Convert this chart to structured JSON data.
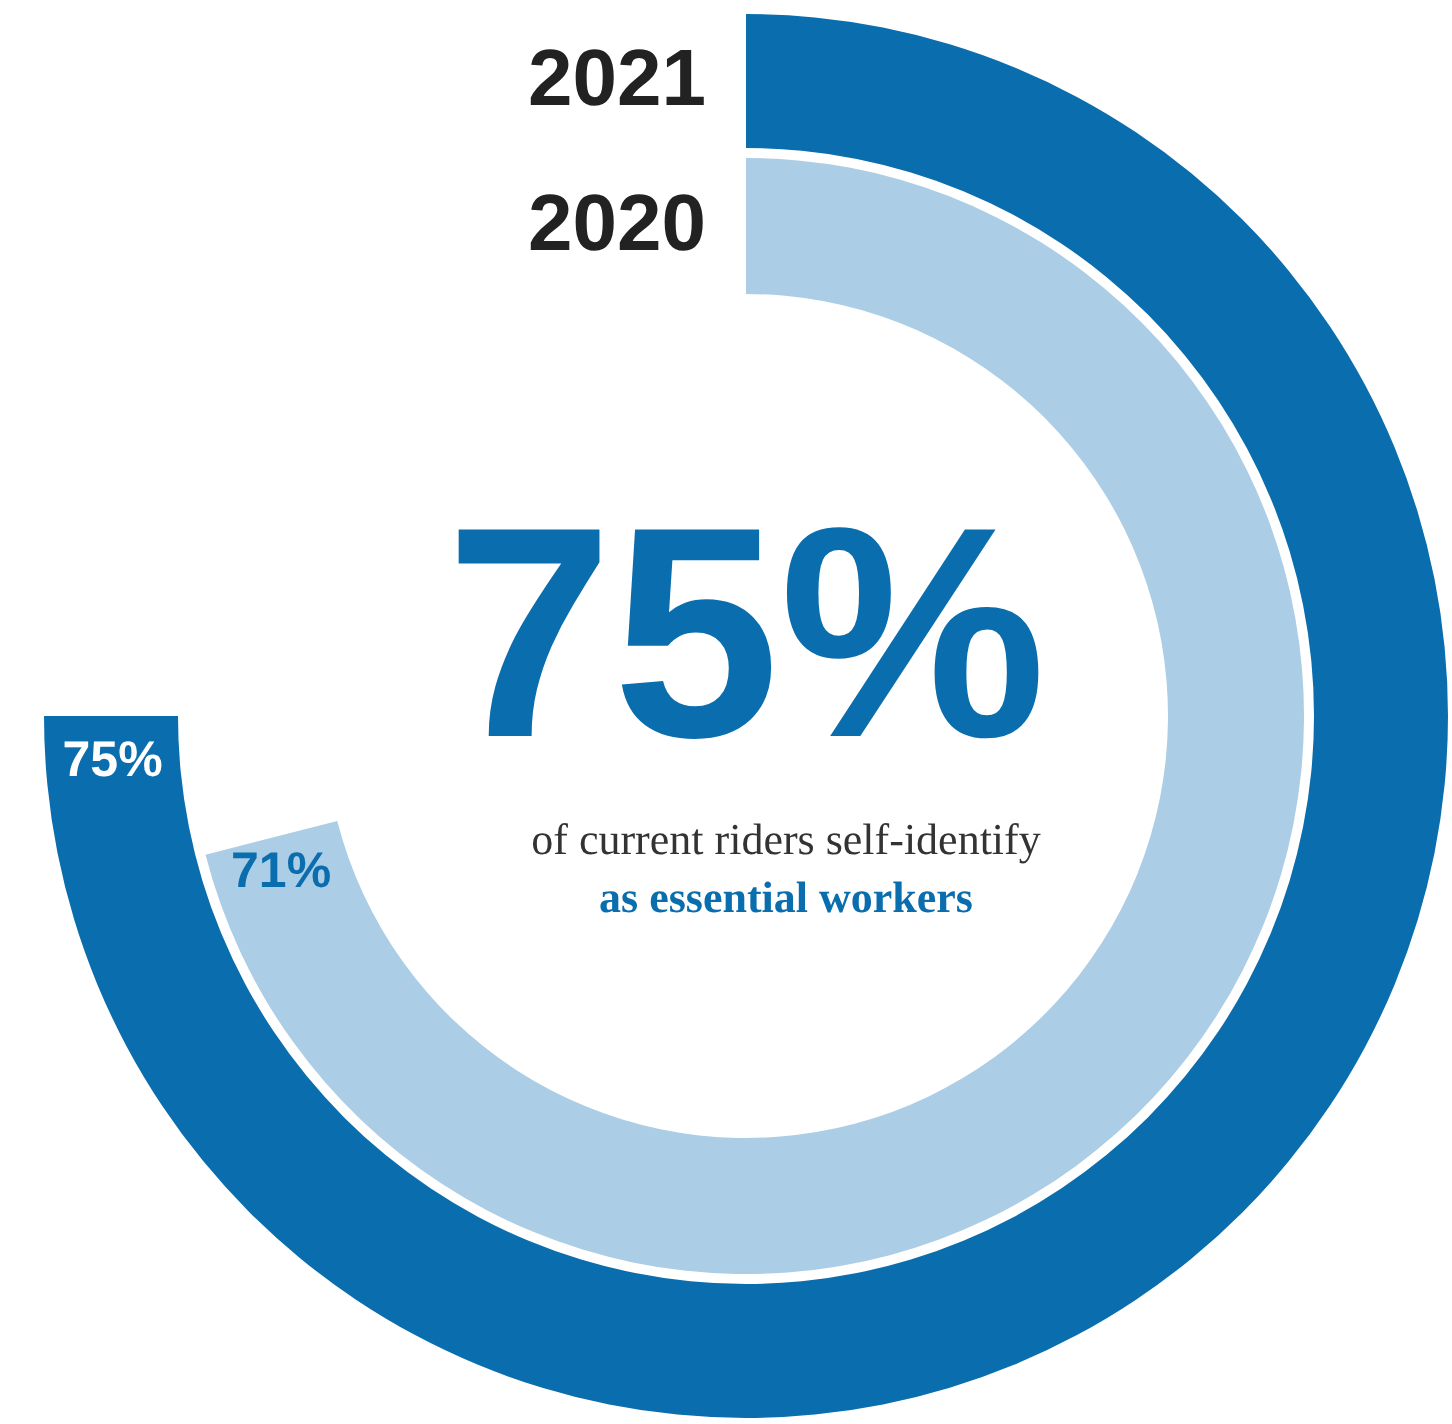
{
  "chart_data": {
    "type": "donut",
    "title": "75%",
    "annotations": [
      "of current riders self-identify",
      "as essential workers"
    ],
    "series": [
      {
        "name": "2020",
        "color": "#abcde5",
        "values": [
          71
        ],
        "value_labels": [
          "71%"
        ]
      },
      {
        "name": "2021",
        "color": "#0a6eae",
        "values": [
          75
        ],
        "value_labels": [
          "75%"
        ]
      }
    ]
  }
}
